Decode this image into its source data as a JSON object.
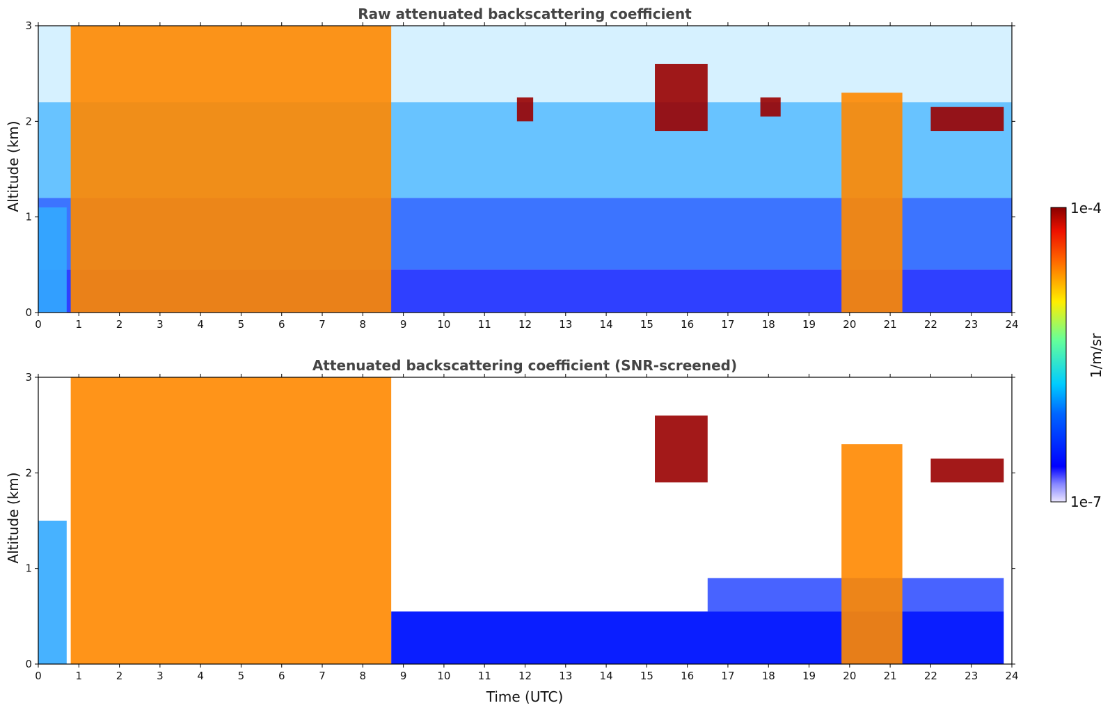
{
  "chart_data": [
    {
      "type": "heatmap",
      "title": "Raw attenuated backscattering coefficient",
      "xlabel": "",
      "ylabel": "Altitude (km)",
      "xlim": [
        0,
        24
      ],
      "ylim": [
        0,
        3
      ],
      "x_ticks": [
        "0",
        "1",
        "2",
        "3",
        "4",
        "5",
        "6",
        "7",
        "8",
        "9",
        "10",
        "11",
        "12",
        "13",
        "14",
        "15",
        "16",
        "17",
        "18",
        "19",
        "20",
        "21",
        "22",
        "23",
        "24"
      ],
      "y_ticks": [
        "0",
        "1",
        "2",
        "3"
      ],
      "screened": false,
      "cloud_layers": [
        {
          "t_start": 0.0,
          "t_end": 0.7,
          "base_km": 0.0,
          "top_km": 1.1,
          "intensity": "low"
        },
        {
          "t_start": 0.8,
          "t_end": 8.7,
          "base_km": 0.0,
          "top_km": 3.0,
          "intensity": "high"
        },
        {
          "t_start": 11.8,
          "t_end": 12.2,
          "base_km": 2.0,
          "top_km": 2.25,
          "intensity": "peak"
        },
        {
          "t_start": 15.2,
          "t_end": 16.5,
          "base_km": 1.9,
          "top_km": 2.6,
          "intensity": "peak"
        },
        {
          "t_start": 17.8,
          "t_end": 18.3,
          "base_km": 2.05,
          "top_km": 2.25,
          "intensity": "peak"
        },
        {
          "t_start": 19.8,
          "t_end": 21.3,
          "base_km": 0.0,
          "top_km": 2.3,
          "intensity": "high"
        },
        {
          "t_start": 22.0,
          "t_end": 23.8,
          "base_km": 1.9,
          "top_km": 2.15,
          "intensity": "peak"
        }
      ]
    },
    {
      "type": "heatmap",
      "title": "Attenuated backscattering coefficient (SNR-screened)",
      "xlabel": "Time (UTC)",
      "ylabel": "Altitude (km)",
      "xlim": [
        0,
        24
      ],
      "ylim": [
        0,
        3
      ],
      "x_ticks": [
        "0",
        "1",
        "2",
        "3",
        "4",
        "5",
        "6",
        "7",
        "8",
        "9",
        "10",
        "11",
        "12",
        "13",
        "14",
        "15",
        "16",
        "17",
        "18",
        "19",
        "20",
        "21",
        "22",
        "23",
        "24"
      ],
      "y_ticks": [
        "0",
        "1",
        "2",
        "3"
      ],
      "screened": true,
      "cloud_layers": [
        {
          "t_start": 0.0,
          "t_end": 0.7,
          "base_km": 0.0,
          "top_km": 1.5,
          "intensity": "low"
        },
        {
          "t_start": 0.8,
          "t_end": 8.7,
          "base_km": 0.0,
          "top_km": 3.0,
          "intensity": "high"
        },
        {
          "t_start": 15.2,
          "t_end": 16.5,
          "base_km": 1.9,
          "top_km": 2.6,
          "intensity": "peak"
        },
        {
          "t_start": 19.8,
          "t_end": 21.3,
          "base_km": 0.0,
          "top_km": 2.3,
          "intensity": "high"
        },
        {
          "t_start": 22.0,
          "t_end": 23.8,
          "base_km": 1.9,
          "top_km": 2.15,
          "intensity": "peak"
        }
      ]
    }
  ],
  "colorbar": {
    "max_label": "1e-4",
    "min_label": "1e-7",
    "unit_label": "1/m/sr",
    "colormap": "jet",
    "scale": "log"
  },
  "colors": {
    "title": "#444444",
    "text": "#111111",
    "axis": "#000000"
  }
}
